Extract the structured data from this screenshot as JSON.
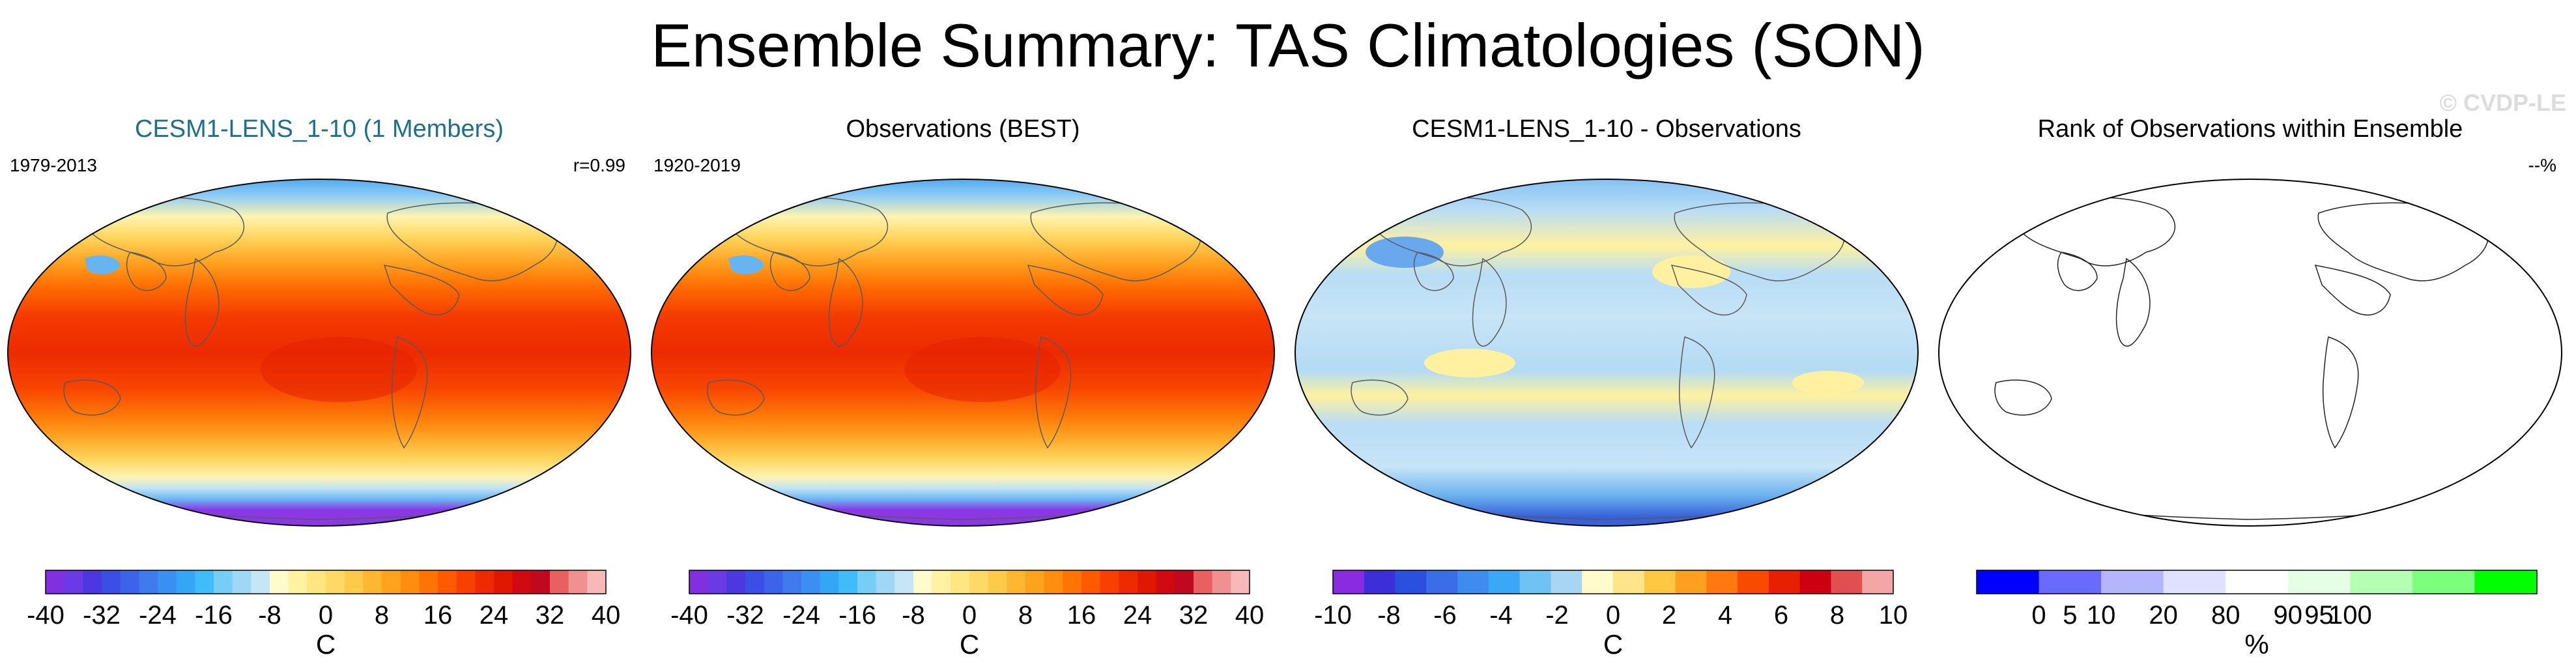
{
  "title": "Ensemble Summary: TAS Climatologies (SON)",
  "watermark": "© CVDP-LE",
  "panels": [
    {
      "title": "CESM1-LENS_1-10 (1 Members)",
      "left_label": "1979-2013",
      "right_label": "r=0.99",
      "map_style": "temperature",
      "map_icon": "world-map-icon",
      "colorbar": {
        "colors": [
          "#8030e0",
          "#6a3ae6",
          "#4b38e0",
          "#3b4ee6",
          "#3c64ea",
          "#3f7aee",
          "#3a90f2",
          "#33a6f6",
          "#40bcfa",
          "#76cdf5",
          "#9ed8f4",
          "#c4e6f7",
          "#fffbcc",
          "#fff2a0",
          "#ffe680",
          "#ffd966",
          "#ffc94a",
          "#ffb732",
          "#ffa31e",
          "#ff8d10",
          "#ff7405",
          "#ff5a00",
          "#f84000",
          "#ee2a00",
          "#e01800",
          "#d00a10",
          "#c00820",
          "#e86060",
          "#f09090",
          "#f8b8b8"
        ],
        "tick_labels": [
          "-40",
          "-32",
          "-24",
          "-16",
          "-8",
          "0",
          "8",
          "16",
          "24",
          "32",
          "40"
        ],
        "unit": "C"
      }
    },
    {
      "title": "Observations (BEST)",
      "left_label": "1920-2019",
      "right_label": "",
      "map_style": "temperature",
      "map_icon": "world-map-icon",
      "colorbar": {
        "colors": [
          "#8030e0",
          "#6a3ae6",
          "#4b38e0",
          "#3b4ee6",
          "#3c64ea",
          "#3f7aee",
          "#3a90f2",
          "#33a6f6",
          "#40bcfa",
          "#76cdf5",
          "#9ed8f4",
          "#c4e6f7",
          "#fffbcc",
          "#fff2a0",
          "#ffe680",
          "#ffd966",
          "#ffc94a",
          "#ffb732",
          "#ffa31e",
          "#ff8d10",
          "#ff7405",
          "#ff5a00",
          "#f84000",
          "#ee2a00",
          "#e01800",
          "#d00a10",
          "#c00820",
          "#e86060",
          "#f09090",
          "#f8b8b8"
        ],
        "tick_labels": [
          "-40",
          "-32",
          "-24",
          "-16",
          "-8",
          "0",
          "8",
          "16",
          "24",
          "32",
          "40"
        ],
        "unit": "C"
      }
    },
    {
      "title": "CESM1-LENS_1-10 - Observations",
      "left_label": "",
      "right_label": "",
      "map_style": "difference",
      "map_icon": "world-map-icon",
      "colorbar": {
        "colors": [
          "#8a2be2",
          "#3b30d8",
          "#2a50e0",
          "#3a6ee8",
          "#3f8cf0",
          "#3aa8f6",
          "#6ec2f4",
          "#a8d6f2",
          "#fffbcc",
          "#ffe58a",
          "#ffc840",
          "#ffa020",
          "#ff7810",
          "#f84a00",
          "#e62000",
          "#cc0010",
          "#e05050",
          "#f4a6a6"
        ],
        "tick_labels": [
          "-10",
          "-8",
          "-6",
          "-4",
          "-2",
          "0",
          "2",
          "4",
          "6",
          "8",
          "10"
        ],
        "unit": "C"
      }
    },
    {
      "title": "Rank of Observations within Ensemble",
      "left_label": "",
      "right_label": "--%",
      "map_style": "blank",
      "map_icon": "world-map-icon",
      "colorbar": {
        "colors": [
          "#0000ff",
          "#6a6aff",
          "#b4b4ff",
          "#e0e0ff",
          "#ffffff",
          "#e4ffe4",
          "#b4ffb4",
          "#7cff7c",
          "#00ff00"
        ],
        "tick_labels": [
          "0",
          "5",
          "10",
          "20",
          "80",
          "90",
          "95",
          "100"
        ],
        "unit": "%"
      }
    }
  ]
}
